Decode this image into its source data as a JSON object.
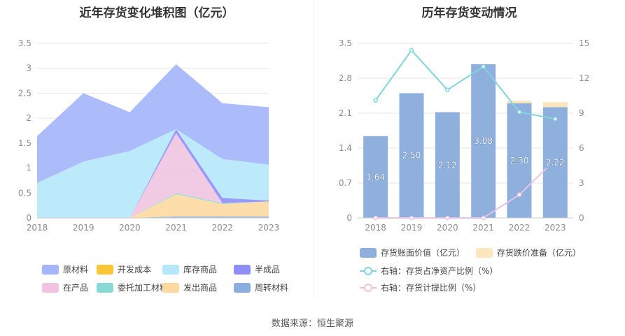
{
  "source": "数据来源：恒生聚源",
  "chart_data": [
    {
      "type": "area",
      "stacked": true,
      "title": "近年存货变化堆积图（亿元）",
      "categories": [
        "2018",
        "2019",
        "2020",
        "2021",
        "2022",
        "2023"
      ],
      "ylim": [
        0,
        3.5
      ],
      "yticks": [
        "0",
        "0.5",
        "1",
        "1.5",
        "2",
        "2.5",
        "3",
        "3.5"
      ],
      "series": [
        {
          "name": "周转材料",
          "color": "#8aaee0",
          "values": [
            0.0,
            0.0,
            0.0,
            0.03,
            0.03,
            0.03
          ]
        },
        {
          "name": "发出商品",
          "color": "#fdd9a0",
          "values": [
            0.0,
            0.0,
            0.0,
            0.45,
            0.25,
            0.3
          ]
        },
        {
          "name": "委托加工材料",
          "color": "#88d8d8",
          "values": [
            0.0,
            0.0,
            0.0,
            0.02,
            0.02,
            0.0
          ]
        },
        {
          "name": "在产品",
          "color": "#f0c4e0",
          "values": [
            0.0,
            0.0,
            0.0,
            1.2,
            0.0,
            0.0
          ]
        },
        {
          "name": "半成品",
          "color": "#8f8ef8",
          "values": [
            0.0,
            0.0,
            0.0,
            0.08,
            0.1,
            0.02
          ]
        },
        {
          "name": "库存商品",
          "color": "#b6e8fb",
          "values": [
            0.7,
            1.13,
            1.34,
            0.0,
            0.78,
            0.72
          ]
        },
        {
          "name": "开发成本",
          "color": "#fcc536",
          "values": [
            0.0,
            0.0,
            0.0,
            0.0,
            0.0,
            0.0
          ]
        },
        {
          "name": "原材料",
          "color": "#a3b5fb",
          "values": [
            0.94,
            1.37,
            0.78,
            1.3,
            1.12,
            1.15
          ]
        }
      ],
      "legend": {
        "placement": "bottom",
        "order": [
          "原材料",
          "开发成本",
          "库存商品",
          "半成品",
          "在产品",
          "委托加工材料",
          "发出商品",
          "周转材料"
        ]
      }
    },
    {
      "type": "bar",
      "title": "历年存货变动情况",
      "categories": [
        "2018",
        "2019",
        "2020",
        "2021",
        "2022",
        "2023"
      ],
      "ylim_left": [
        0,
        3.5
      ],
      "yticks_left": [
        "0",
        "0.7",
        "1.4",
        "2.1",
        "2.8",
        "3.5"
      ],
      "ylim_right": [
        0,
        15
      ],
      "yticks_right": [
        "0",
        "3",
        "6",
        "9",
        "12",
        "15"
      ],
      "bars": [
        {
          "name": "存货账面价值（亿元）",
          "color": "#8fb0dc",
          "values": [
            1.64,
            2.5,
            2.12,
            3.08,
            2.3,
            2.22
          ],
          "labels": [
            "1.64",
            "2.50",
            "2.12",
            "3.08",
            "2.30",
            "2.22"
          ]
        },
        {
          "name": "存货跌价准备（亿元）",
          "color": "#fde5bf",
          "values": [
            0.0,
            0.0,
            0.0,
            0.0,
            0.05,
            0.1
          ]
        }
      ],
      "lines": [
        {
          "name": "右轴：存货占净资产比例（%）",
          "color": "#7fd4de",
          "values": [
            10.1,
            14.4,
            11.0,
            13.0,
            9.1,
            8.5
          ]
        },
        {
          "name": "右轴：存货计提比例（%）",
          "color": "#e8c3e3",
          "values": [
            0.0,
            0.0,
            0.0,
            0.0,
            2.0,
            5.0
          ]
        }
      ],
      "legend": {
        "placement": "bottom"
      }
    }
  ]
}
